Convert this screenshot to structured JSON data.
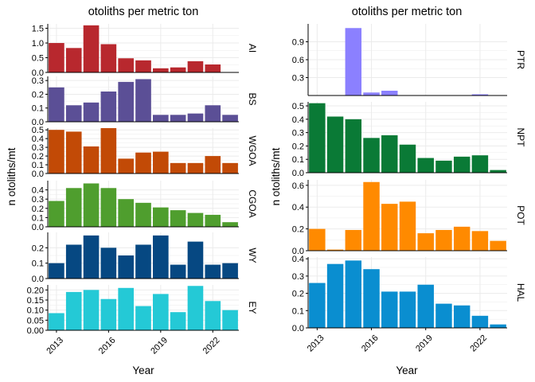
{
  "colors": {
    "AI": "#b8282e",
    "BS": "#5b4f96",
    "WGOA": "#c24a06",
    "CGOA": "#4f9e2e",
    "WY": "#064882",
    "EY": "#24c9d6",
    "PTR": "#8b80ff",
    "NPT": "#0a7a36",
    "POT": "#ff8a00",
    "HAL": "#0a8ed0",
    "grid": "#ebebeb",
    "axis": "#000000"
  },
  "chart_data": [
    {
      "type": "bar",
      "title": "otoliths per metric ton",
      "ylabel": "n otoliths/mt",
      "xlabel": "Year",
      "x": [
        2013,
        2014,
        2015,
        2016,
        2017,
        2018,
        2019,
        2020,
        2021,
        2022,
        2023
      ],
      "x_ticks": [
        "2013",
        "2016",
        "2019",
        "2022"
      ],
      "grid": true,
      "series": [
        {
          "name": "AI",
          "ylim": [
            0,
            1.65
          ],
          "ticks": [
            "0.0",
            "0.5",
            "1.0",
            "1.5"
          ],
          "tick_values": [
            0,
            0.5,
            1.0,
            1.5
          ],
          "values": [
            1.0,
            0.83,
            1.6,
            0.96,
            0.48,
            0.41,
            0.14,
            0.17,
            0.38,
            0.27,
            null
          ]
        },
        {
          "name": "BS",
          "ylim": [
            0,
            0.33
          ],
          "ticks": [
            "0.0",
            "0.1",
            "0.2",
            "0.3"
          ],
          "tick_values": [
            0,
            0.1,
            0.2,
            0.3
          ],
          "values": [
            0.25,
            0.12,
            0.14,
            0.22,
            0.29,
            0.31,
            0.05,
            0.05,
            0.06,
            0.12,
            0.05
          ]
        },
        {
          "name": "WGOA",
          "ylim": [
            0,
            0.52
          ],
          "ticks": [
            "0.0",
            "0.1",
            "0.2",
            "0.3",
            "0.4",
            "0.5"
          ],
          "tick_values": [
            0,
            0.1,
            0.2,
            0.3,
            0.4,
            0.5
          ],
          "values": [
            0.5,
            0.48,
            0.31,
            0.52,
            0.17,
            0.24,
            0.25,
            0.12,
            0.12,
            0.2,
            0.12
          ]
        },
        {
          "name": "CGOA",
          "ylim": [
            0,
            0.5
          ],
          "ticks": [
            "0.0",
            "0.1",
            "0.2",
            "0.3",
            "0.4"
          ],
          "tick_values": [
            0,
            0.1,
            0.2,
            0.3,
            0.4
          ],
          "values": [
            0.28,
            0.42,
            0.47,
            0.42,
            0.3,
            0.26,
            0.21,
            0.18,
            0.15,
            0.13,
            0.05
          ]
        },
        {
          "name": "WY",
          "ylim": [
            0,
            0.3
          ],
          "ticks": [
            "0.0",
            "0.1",
            "0.2"
          ],
          "tick_values": [
            0,
            0.1,
            0.2
          ],
          "values": [
            0.1,
            0.22,
            0.28,
            0.2,
            0.15,
            0.22,
            0.28,
            0.09,
            0.24,
            0.09,
            0.1
          ]
        },
        {
          "name": "EY",
          "ylim": [
            0,
            0.225
          ],
          "ticks": [
            "0.00",
            "0.05",
            "0.10",
            "0.15",
            "0.20"
          ],
          "tick_values": [
            0,
            0.05,
            0.1,
            0.15,
            0.2
          ],
          "values": [
            0.085,
            0.19,
            0.2,
            0.155,
            0.21,
            0.12,
            0.18,
            0.09,
            0.22,
            0.145,
            0.1
          ]
        }
      ]
    },
    {
      "type": "bar",
      "title": "otoliths per metric ton",
      "ylabel": "n otoliths/mt",
      "xlabel": "Year",
      "x": [
        2013,
        2014,
        2015,
        2016,
        2017,
        2018,
        2019,
        2020,
        2021,
        2022,
        2023
      ],
      "x_ticks": [
        "2013",
        "2016",
        "2019",
        "2022"
      ],
      "grid": true,
      "series": [
        {
          "name": "PTR",
          "ylim": [
            0,
            1.2
          ],
          "ticks": [
            "0.3",
            "0.6",
            "0.9"
          ],
          "tick_values": [
            0.3,
            0.6,
            0.9
          ],
          "values": [
            null,
            null,
            1.13,
            0.05,
            0.08,
            null,
            null,
            null,
            null,
            0.02,
            null
          ]
        },
        {
          "name": "NPT",
          "ylim": [
            0,
            0.53
          ],
          "ticks": [
            "0.0",
            "0.1",
            "0.2",
            "0.3",
            "0.4",
            "0.5"
          ],
          "tick_values": [
            0,
            0.1,
            0.2,
            0.3,
            0.4,
            0.5
          ],
          "values": [
            0.52,
            0.42,
            0.4,
            0.26,
            0.28,
            0.21,
            0.11,
            0.09,
            0.12,
            0.13,
            0.02
          ]
        },
        {
          "name": "POT",
          "ylim": [
            0,
            0.65
          ],
          "ticks": [
            "0.0",
            "0.2",
            "0.4",
            "0.6"
          ],
          "tick_values": [
            0,
            0.2,
            0.4,
            0.6
          ],
          "values": [
            0.2,
            0.01,
            0.19,
            0.63,
            0.43,
            0.45,
            0.16,
            0.19,
            0.22,
            0.18,
            0.09
          ]
        },
        {
          "name": "HAL",
          "ylim": [
            0,
            0.41
          ],
          "ticks": [
            "0.0",
            "0.1",
            "0.2",
            "0.3",
            "0.4"
          ],
          "tick_values": [
            0,
            0.1,
            0.2,
            0.3,
            0.4
          ],
          "values": [
            0.26,
            0.37,
            0.39,
            0.34,
            0.21,
            0.21,
            0.25,
            0.14,
            0.13,
            0.07,
            0.02
          ]
        }
      ]
    }
  ]
}
